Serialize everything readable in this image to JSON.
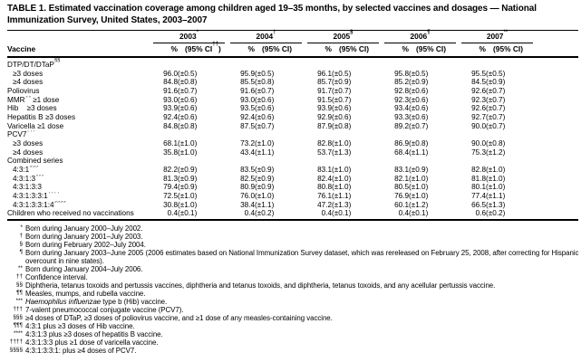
{
  "title": "TABLE 1. Estimated vaccination coverage among children aged 19–35 months, by selected vaccines and dosages — National Immunization Survey, United States, 2003–2007",
  "table": {
    "vaccine_col_header": "Vaccine",
    "years": [
      {
        "label": "2003",
        "sup": "*",
        "pct": "%",
        "ci_pre": "(95% CI",
        "ci_sup": "††",
        "ci_post": ")"
      },
      {
        "label": "2004",
        "sup": "†",
        "pct": "%",
        "ci_pre": "(95% CI",
        "ci_sup": "",
        "ci_post": ")"
      },
      {
        "label": "2005",
        "sup": "§",
        "pct": "%",
        "ci_pre": "(95% CI",
        "ci_sup": "",
        "ci_post": ")"
      },
      {
        "label": "2006",
        "sup": "¶",
        "pct": "%",
        "ci_pre": "(95% CI",
        "ci_sup": "",
        "ci_post": ")"
      },
      {
        "label": "2007",
        "sup": "**",
        "pct": "%",
        "ci_pre": "(95% CI",
        "ci_sup": "",
        "ci_post": ")"
      }
    ],
    "rows": [
      {
        "pre": "DTP/DT/DTaP",
        "sup": "§§",
        "post": "",
        "indent": false,
        "values": []
      },
      {
        "pre": "≥3 doses",
        "sup": "",
        "post": "",
        "indent": true,
        "values": [
          [
            "96.0",
            "(±0.5)"
          ],
          [
            "95.9",
            "(±0.5)"
          ],
          [
            "96.1",
            "(±0.5)"
          ],
          [
            "95.8",
            "(±0.5)"
          ],
          [
            "95.5",
            "(±0.5)"
          ]
        ]
      },
      {
        "pre": "≥4 doses",
        "sup": "",
        "post": "",
        "indent": true,
        "values": [
          [
            "84.8",
            "(±0.8)"
          ],
          [
            "85.5",
            "(±0.8)"
          ],
          [
            "85.7",
            "(±0.9)"
          ],
          [
            "85.2",
            "(±0.9)"
          ],
          [
            "84.5",
            "(±0.9)"
          ]
        ]
      },
      {
        "pre": "Poliovirus",
        "sup": "",
        "post": "",
        "indent": false,
        "values": [
          [
            "91.6",
            "(±0.7)"
          ],
          [
            "91.6",
            "(±0.7)"
          ],
          [
            "91.7",
            "(±0.7)"
          ],
          [
            "92.8",
            "(±0.6)"
          ],
          [
            "92.6",
            "(±0.7)"
          ]
        ]
      },
      {
        "pre": "MMR",
        "sup": "¶¶",
        "post": " ≥1 dose",
        "indent": false,
        "values": [
          [
            "93.0",
            "(±0.6)"
          ],
          [
            "93.0",
            "(±0.6)"
          ],
          [
            "91.5",
            "(±0.7)"
          ],
          [
            "92.3",
            "(±0.6)"
          ],
          [
            "92.3",
            "(±0.7)"
          ]
        ]
      },
      {
        "pre": "Hib",
        "sup": "***",
        "post": " ≥3 doses",
        "indent": false,
        "values": [
          [
            "93.9",
            "(±0.6)"
          ],
          [
            "93.5",
            "(±0.6)"
          ],
          [
            "93.9",
            "(±0.6)"
          ],
          [
            "93.4",
            "(±0.6)"
          ],
          [
            "92.6",
            "(±0.7)"
          ]
        ]
      },
      {
        "pre": "Hepatitis B ≥3 doses",
        "sup": "",
        "post": "",
        "indent": false,
        "values": [
          [
            "92.4",
            "(±0.6)"
          ],
          [
            "92.4",
            "(±0.6)"
          ],
          [
            "92.9",
            "(±0.6)"
          ],
          [
            "93.3",
            "(±0.6)"
          ],
          [
            "92.7",
            "(±0.7)"
          ]
        ]
      },
      {
        "pre": "Varicella ≥1 dose",
        "sup": "",
        "post": "",
        "indent": false,
        "values": [
          [
            "84.8",
            "(±0.8)"
          ],
          [
            "87.5",
            "(±0.7)"
          ],
          [
            "87.9",
            "(±0.8)"
          ],
          [
            "89.2",
            "(±0.7)"
          ],
          [
            "90.0",
            "(±0.7)"
          ]
        ]
      },
      {
        "pre": "PCV7",
        "sup": "†††",
        "post": "",
        "indent": false,
        "values": []
      },
      {
        "pre": "≥3 doses",
        "sup": "",
        "post": "",
        "indent": true,
        "values": [
          [
            "68.1",
            "(±1.0)"
          ],
          [
            "73.2",
            "(±1.0)"
          ],
          [
            "82.8",
            "(±1.0)"
          ],
          [
            "86.9",
            "(±0.8)"
          ],
          [
            "90.0",
            "(±0.8)"
          ]
        ]
      },
      {
        "pre": "≥4 doses",
        "sup": "",
        "post": "",
        "indent": true,
        "values": [
          [
            "35.8",
            "(±1.0)"
          ],
          [
            "43.4",
            "(±1.1)"
          ],
          [
            "53.7",
            "(±1.3)"
          ],
          [
            "68.4",
            "(±1.1)"
          ],
          [
            "75.3",
            "(±1.2)"
          ]
        ]
      },
      {
        "pre": "Combined series",
        "sup": "",
        "post": "",
        "indent": false,
        "values": []
      },
      {
        "pre": "4:3:1",
        "sup": "§§§",
        "post": "",
        "indent": true,
        "values": [
          [
            "82.2",
            "(±0.9)"
          ],
          [
            "83.5",
            "(±0.9)"
          ],
          [
            "83.1",
            "(±1.0)"
          ],
          [
            "83.1",
            "(±0.9)"
          ],
          [
            "82.8",
            "(±1.0)"
          ]
        ]
      },
      {
        "pre": "4:3:1:3",
        "sup": "¶¶¶",
        "post": "",
        "indent": true,
        "values": [
          [
            "81.3",
            "(±0.9)"
          ],
          [
            "82.5",
            "(±0.9)"
          ],
          [
            "82.4",
            "(±1.0)"
          ],
          [
            "82.1",
            "(±1.0)"
          ],
          [
            "81.8",
            "(±1.0)"
          ]
        ]
      },
      {
        "pre": "4:3:1:3:3",
        "sup": "****",
        "post": "",
        "indent": true,
        "values": [
          [
            "79.4",
            "(±0.9)"
          ],
          [
            "80.9",
            "(±0.9)"
          ],
          [
            "80.8",
            "(±1.0)"
          ],
          [
            "80.5",
            "(±1.0)"
          ],
          [
            "80.1",
            "(±1.0)"
          ]
        ]
      },
      {
        "pre": "4:3:1:3:3:1",
        "sup": "††††",
        "post": "",
        "indent": true,
        "values": [
          [
            "72.5",
            "(±1.0)"
          ],
          [
            "76.0",
            "(±1.0)"
          ],
          [
            "76.1",
            "(±1.1)"
          ],
          [
            "76.9",
            "(±1.0)"
          ],
          [
            "77.4",
            "(±1.1)"
          ]
        ]
      },
      {
        "pre": "4:3:1:3:3:1:4",
        "sup": "§§§§",
        "post": "",
        "indent": true,
        "values": [
          [
            "30.8",
            "(±1.0)"
          ],
          [
            "38.4",
            "(±1.1)"
          ],
          [
            "47.2",
            "(±1.3)"
          ],
          [
            "60.1",
            "(±1.2)"
          ],
          [
            "66.5",
            "(±1.3)"
          ]
        ]
      },
      {
        "pre": "Children who received no vaccinations",
        "sup": "",
        "post": "",
        "indent": false,
        "values": [
          [
            "0.4",
            "(±0.1)"
          ],
          [
            "0.4",
            "(±0.2)"
          ],
          [
            "0.4",
            "(±0.1)"
          ],
          [
            "0.4",
            "(±0.1)"
          ],
          [
            "0.6",
            "(±0.2)"
          ]
        ]
      }
    ]
  },
  "footnotes": [
    {
      "marker": "*",
      "parts": [
        {
          "text": "Born during January 2000–July 2002.",
          "italic": false
        }
      ]
    },
    {
      "marker": "†",
      "parts": [
        {
          "text": "Born during January 2001–July 2003.",
          "italic": false
        }
      ]
    },
    {
      "marker": "§",
      "parts": [
        {
          "text": "Born during February 2002–July 2004.",
          "italic": false
        }
      ]
    },
    {
      "marker": "¶",
      "parts": [
        {
          "text": "Born during January 2003–June 2005 (2006 estimates based on National Immunization Survey dataset, which was rereleased on February 25, 2008, after correcting for Hispanic overcount in nine states).",
          "italic": false
        }
      ]
    },
    {
      "marker": "**",
      "parts": [
        {
          "text": "Born during January 2004–July 2006.",
          "italic": false
        }
      ]
    },
    {
      "marker": "††",
      "parts": [
        {
          "text": "Confidence interval.",
          "italic": false
        }
      ]
    },
    {
      "marker": "§§",
      "parts": [
        {
          "text": "Diphtheria, tetanus toxoids and pertussis vaccines, diphtheria and tetanus toxoids, and diphtheria, tetanus toxoids, and any acellular pertussis vaccine.",
          "italic": false
        }
      ]
    },
    {
      "marker": "¶¶",
      "parts": [
        {
          "text": "Measles, mumps, and rubella vaccine.",
          "italic": false
        }
      ]
    },
    {
      "marker": "***",
      "parts": [
        {
          "text": "Haemophilus influenzae",
          "italic": true
        },
        {
          "text": " type b (Hib) vaccine.",
          "italic": false
        }
      ]
    },
    {
      "marker": "†††",
      "parts": [
        {
          "text": "7-valent pneumococcal conjugate vaccine (PCV7).",
          "italic": false
        }
      ]
    },
    {
      "marker": "§§§",
      "parts": [
        {
          "text": "≥4 doses of DTaP, ≥3 doses of poliovirus vaccine, and ≥1 dose of any measles-containing vaccine.",
          "italic": false
        }
      ]
    },
    {
      "marker": "¶¶¶",
      "parts": [
        {
          "text": "4:3:1 plus ≥3 doses of Hib vaccine.",
          "italic": false
        }
      ]
    },
    {
      "marker": "****",
      "parts": [
        {
          "text": "4:3:1:3 plus ≥3 doses of hepatitis B vaccine.",
          "italic": false
        }
      ]
    },
    {
      "marker": "††††",
      "parts": [
        {
          "text": "4:3:1:3:3 plus ≥1 dose of varicella vaccine.",
          "italic": false
        }
      ]
    },
    {
      "marker": "§§§§",
      "parts": [
        {
          "text": "4:3:1:3:3:1: plus ≥4 doses of PCV7.",
          "italic": false
        }
      ]
    }
  ]
}
